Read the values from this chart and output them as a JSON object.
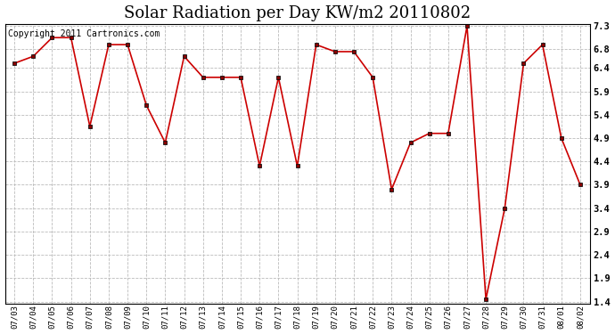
{
  "title": "Solar Radiation per Day KW/m2 20110802",
  "copyright_text": "Copyright 2011 Cartronics.com",
  "dates": [
    "07/03",
    "07/04",
    "07/05",
    "07/06",
    "07/07",
    "07/08",
    "07/09",
    "07/10",
    "07/11",
    "07/12",
    "07/13",
    "07/14",
    "07/15",
    "07/16",
    "07/17",
    "07/18",
    "07/19",
    "07/20",
    "07/21",
    "07/22",
    "07/23",
    "07/24",
    "07/25",
    "07/26",
    "07/27",
    "07/28",
    "07/29",
    "07/30",
    "07/31",
    "08/01",
    "08/02"
  ],
  "values": [
    6.5,
    6.65,
    7.05,
    7.05,
    5.15,
    6.9,
    6.9,
    5.6,
    4.8,
    6.65,
    6.2,
    6.2,
    6.2,
    4.3,
    6.2,
    4.3,
    6.9,
    6.75,
    6.75,
    6.2,
    3.8,
    4.8,
    5.0,
    5.0,
    7.3,
    1.45,
    3.4,
    6.5,
    6.9,
    4.9,
    3.9
  ],
  "line_color": "#cc0000",
  "marker_color": "#880000",
  "bg_color": "#ffffff",
  "grid_color": "#bbbbbb",
  "ylim_min": 1.4,
  "ylim_max": 7.3,
  "yticks": [
    1.4,
    1.9,
    2.4,
    2.9,
    3.4,
    3.9,
    4.4,
    4.9,
    5.4,
    5.9,
    6.4,
    6.8,
    7.3
  ],
  "title_fontsize": 13,
  "copyright_fontsize": 7
}
